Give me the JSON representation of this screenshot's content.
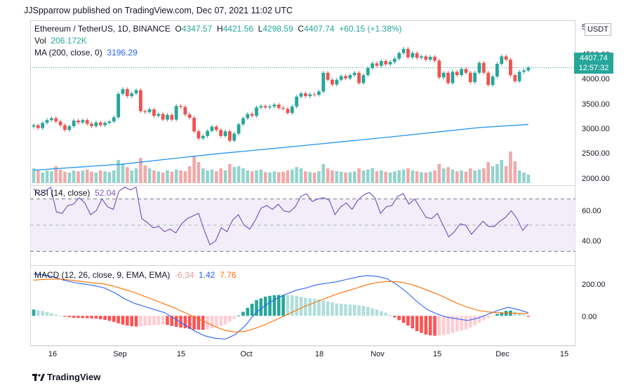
{
  "header": {
    "text": "JJSpparrow published on TradingView.com, Dec 07, 2021 11:02 UTC"
  },
  "legend": {
    "symbol": "Ethereum / TetherUS, 1D, BINANCE",
    "open_label": "O",
    "open": "4347.57",
    "high_label": "H",
    "high": "4421.56",
    "low_label": "L",
    "low": "4298.59",
    "close_label": "C",
    "close": "4407.74",
    "change": "+60.15 (+1.38%)",
    "vol_label": "Vol",
    "vol": "206.172K",
    "ma_label": "MA (200, close, 0)",
    "ma": "3196.29",
    "rsi_label": "RSI (14, close)",
    "rsi": "52.04",
    "macd_label": "MACD (12, 26, close, 9, EMA, EMA)",
    "macd_hist": "-6.34",
    "macd_line": "1.42",
    "macd_signal": "7.76"
  },
  "price_axis": {
    "currency_button": "USDT",
    "top_cut": "5",
    "ticks": [
      "4500.00",
      "4000.00",
      "3500.00",
      "3000.00",
      "2500.00",
      "2000.00"
    ],
    "last_price": "4407.74",
    "countdown": "12:57:32"
  },
  "rsi_axis": {
    "ticks": [
      "60.00",
      "40.00"
    ]
  },
  "macd_axis": {
    "ticks": [
      "200.00",
      "0.00"
    ]
  },
  "x_axis": {
    "ticks": [
      "16",
      "Sep",
      "15",
      "Oct",
      "18",
      "Nov",
      "15",
      "Dec",
      "15"
    ]
  },
  "brand": {
    "name": "TradingView"
  },
  "colors": {
    "up": "#26a69a",
    "down": "#ef5350",
    "ma": "#2196f3",
    "rsi": "#7e57c2",
    "macd": "#2962ff",
    "signal": "#ff6d00"
  },
  "chart_data": {
    "type": "candlestick",
    "title": "Ethereum / TetherUS, 1D, BINANCE",
    "price_range": [
      1900,
      5000
    ],
    "candles": [
      {
        "o": 3150,
        "c": 3180
      },
      {
        "o": 3180,
        "c": 3120
      },
      {
        "o": 3120,
        "c": 3230
      },
      {
        "o": 3230,
        "c": 3290
      },
      {
        "o": 3290,
        "c": 3330
      },
      {
        "o": 3330,
        "c": 3260
      },
      {
        "o": 3260,
        "c": 3180
      },
      {
        "o": 3180,
        "c": 3080
      },
      {
        "o": 3080,
        "c": 3160
      },
      {
        "o": 3160,
        "c": 3280
      },
      {
        "o": 3280,
        "c": 3240
      },
      {
        "o": 3240,
        "c": 3290
      },
      {
        "o": 3290,
        "c": 3210
      },
      {
        "o": 3210,
        "c": 3160
      },
      {
        "o": 3160,
        "c": 3240
      },
      {
        "o": 3240,
        "c": 3180
      },
      {
        "o": 3180,
        "c": 3230
      },
      {
        "o": 3230,
        "c": 3260
      },
      {
        "o": 3260,
        "c": 3350
      },
      {
        "o": 3350,
        "c": 3850
      },
      {
        "o": 3850,
        "c": 3950
      },
      {
        "o": 3950,
        "c": 3800
      },
      {
        "o": 3800,
        "c": 3860
      },
      {
        "o": 3860,
        "c": 3930
      },
      {
        "o": 3930,
        "c": 3480
      },
      {
        "o": 3480,
        "c": 3460
      },
      {
        "o": 3460,
        "c": 3520
      },
      {
        "o": 3520,
        "c": 3380
      },
      {
        "o": 3380,
        "c": 3420
      },
      {
        "o": 3420,
        "c": 3300
      },
      {
        "o": 3300,
        "c": 3400
      },
      {
        "o": 3400,
        "c": 3300
      },
      {
        "o": 3300,
        "c": 3590
      },
      {
        "o": 3590,
        "c": 3570
      },
      {
        "o": 3570,
        "c": 3410
      },
      {
        "o": 3410,
        "c": 3340
      },
      {
        "o": 3340,
        "c": 3050
      },
      {
        "o": 3050,
        "c": 2900
      },
      {
        "o": 2900,
        "c": 2950
      },
      {
        "o": 2950,
        "c": 3060
      },
      {
        "o": 3060,
        "c": 3150
      },
      {
        "o": 3150,
        "c": 3080
      },
      {
        "o": 3080,
        "c": 2950
      },
      {
        "o": 2950,
        "c": 3050
      },
      {
        "o": 3050,
        "c": 2850
      },
      {
        "o": 2850,
        "c": 3000
      },
      {
        "o": 3000,
        "c": 3200
      },
      {
        "o": 3200,
        "c": 3330
      },
      {
        "o": 3330,
        "c": 3420
      },
      {
        "o": 3420,
        "c": 3380
      },
      {
        "o": 3380,
        "c": 3560
      },
      {
        "o": 3560,
        "c": 3590
      },
      {
        "o": 3590,
        "c": 3560
      },
      {
        "o": 3560,
        "c": 3580
      },
      {
        "o": 3580,
        "c": 3620
      },
      {
        "o": 3620,
        "c": 3550
      },
      {
        "o": 3550,
        "c": 3530
      },
      {
        "o": 3530,
        "c": 3440
      },
      {
        "o": 3440,
        "c": 3580
      },
      {
        "o": 3580,
        "c": 3790
      },
      {
        "o": 3790,
        "c": 3860
      },
      {
        "o": 3860,
        "c": 3800
      },
      {
        "o": 3800,
        "c": 3840
      },
      {
        "o": 3840,
        "c": 3830
      },
      {
        "o": 3830,
        "c": 3900
      },
      {
        "o": 3900,
        "c": 4300
      },
      {
        "o": 4300,
        "c": 4150
      },
      {
        "o": 4150,
        "c": 4050
      },
      {
        "o": 4050,
        "c": 4150
      },
      {
        "o": 4150,
        "c": 4230
      },
      {
        "o": 4230,
        "c": 4180
      },
      {
        "o": 4180,
        "c": 4250
      },
      {
        "o": 4250,
        "c": 4300
      },
      {
        "o": 4300,
        "c": 4080
      },
      {
        "o": 4080,
        "c": 4250
      },
      {
        "o": 4250,
        "c": 4400
      },
      {
        "o": 4400,
        "c": 4500
      },
      {
        "o": 4500,
        "c": 4450
      },
      {
        "o": 4450,
        "c": 4550
      },
      {
        "o": 4550,
        "c": 4480
      },
      {
        "o": 4480,
        "c": 4530
      },
      {
        "o": 4530,
        "c": 4600
      },
      {
        "o": 4600,
        "c": 4720
      },
      {
        "o": 4720,
        "c": 4810
      },
      {
        "o": 4810,
        "c": 4630
      },
      {
        "o": 4630,
        "c": 4720
      },
      {
        "o": 4720,
        "c": 4620
      },
      {
        "o": 4620,
        "c": 4650
      },
      {
        "o": 4650,
        "c": 4580
      },
      {
        "o": 4580,
        "c": 4640
      },
      {
        "o": 4640,
        "c": 4560
      },
      {
        "o": 4560,
        "c": 4200
      },
      {
        "o": 4200,
        "c": 4300
      },
      {
        "o": 4300,
        "c": 4080
      },
      {
        "o": 4080,
        "c": 4320
      },
      {
        "o": 4320,
        "c": 4250
      },
      {
        "o": 4250,
        "c": 4380
      },
      {
        "o": 4380,
        "c": 4300
      },
      {
        "o": 4300,
        "c": 4100
      },
      {
        "o": 4100,
        "c": 4300
      },
      {
        "o": 4300,
        "c": 4510
      },
      {
        "o": 4510,
        "c": 4300
      },
      {
        "o": 4300,
        "c": 4040
      },
      {
        "o": 4040,
        "c": 4220
      },
      {
        "o": 4220,
        "c": 4490
      },
      {
        "o": 4490,
        "c": 4650
      },
      {
        "o": 4650,
        "c": 4580
      },
      {
        "o": 4580,
        "c": 4250
      },
      {
        "o": 4250,
        "c": 4120
      },
      {
        "o": 4120,
        "c": 4320
      },
      {
        "o": 4320,
        "c": 4350
      },
      {
        "o": 4350,
        "c": 4408
      }
    ],
    "volume_relative": [
      0.35,
      0.3,
      0.25,
      0.3,
      0.28,
      0.4,
      0.32,
      0.27,
      0.25,
      0.3,
      0.28,
      0.3,
      0.32,
      0.27,
      0.25,
      0.3,
      0.28,
      0.26,
      0.3,
      0.55,
      0.45,
      0.38,
      0.3,
      0.35,
      0.6,
      0.42,
      0.35,
      0.3,
      0.28,
      0.25,
      0.3,
      0.27,
      0.32,
      0.3,
      0.28,
      0.4,
      0.65,
      0.5,
      0.35,
      0.3,
      0.32,
      0.28,
      0.35,
      0.3,
      0.45,
      0.38,
      0.4,
      0.35,
      0.3,
      0.28,
      0.3,
      0.32,
      0.26,
      0.25,
      0.28,
      0.26,
      0.27,
      0.3,
      0.32,
      0.38,
      0.35,
      0.28,
      0.26,
      0.25,
      0.28,
      0.45,
      0.35,
      0.3,
      0.28,
      0.27,
      0.25,
      0.26,
      0.28,
      0.35,
      0.3,
      0.32,
      0.35,
      0.28,
      0.3,
      0.27,
      0.25,
      0.28,
      0.3,
      0.32,
      0.35,
      0.3,
      0.28,
      0.26,
      0.25,
      0.27,
      0.3,
      0.45,
      0.35,
      0.38,
      0.32,
      0.28,
      0.3,
      0.27,
      0.35,
      0.3,
      0.32,
      0.35,
      0.5,
      0.4,
      0.45,
      0.55,
      0.4,
      0.75,
      0.52,
      0.3,
      0.25,
      0.2
    ],
    "ma200": [
      {
        "i": 0,
        "v": 2220
      },
      {
        "i": 20,
        "v": 2350
      },
      {
        "i": 40,
        "v": 2560
      },
      {
        "i": 60,
        "v": 2740
      },
      {
        "i": 80,
        "v": 2930
      },
      {
        "i": 100,
        "v": 3130
      },
      {
        "i": 111,
        "v": 3196
      }
    ],
    "rsi_range": [
      20,
      80
    ],
    "rsi": [
      78,
      73,
      76,
      79,
      60,
      59,
      65,
      66,
      71,
      67,
      58,
      61,
      70,
      64,
      62,
      76,
      79,
      77,
      79,
      55,
      52,
      48,
      49,
      45,
      47,
      44,
      51,
      55,
      57,
      59,
      46,
      35,
      38,
      48,
      45,
      54,
      58,
      50,
      47,
      54,
      63,
      65,
      62,
      66,
      61,
      60,
      64,
      72,
      74,
      68,
      70,
      71,
      69,
      58,
      64,
      67,
      62,
      69,
      73,
      75,
      71,
      59,
      64,
      65,
      72,
      74,
      66,
      70,
      63,
      56,
      55,
      59,
      50,
      41,
      45,
      51,
      50,
      43,
      48,
      53,
      49,
      49,
      53,
      56,
      61,
      55,
      46,
      51
    ],
    "macd_range": [
      -180,
      300
    ],
    "macd": [
      270,
      265,
      250,
      230,
      215,
      205,
      195,
      180,
      150,
      110,
      80,
      60,
      40,
      20,
      -20,
      -60,
      -100,
      -130,
      -145,
      -150,
      -120,
      -60,
      20,
      70,
      110,
      140,
      165,
      180,
      200,
      210,
      220,
      235,
      250,
      260,
      255,
      240,
      200,
      150,
      90,
      40,
      10,
      -10,
      -20,
      -30,
      -15,
      10,
      35,
      55,
      40,
      20
    ],
    "macd_signal": [
      230,
      235,
      238,
      235,
      228,
      220,
      212,
      205,
      190,
      170,
      150,
      125,
      100,
      75,
      50,
      20,
      -10,
      -40,
      -70,
      -95,
      -105,
      -100,
      -80,
      -55,
      -25,
      5,
      35,
      65,
      90,
      115,
      140,
      160,
      180,
      200,
      215,
      222,
      220,
      210,
      190,
      165,
      140,
      110,
      80,
      55,
      35,
      25,
      20,
      18,
      16,
      14
    ],
    "macd_hist": [
      40,
      30,
      12,
      -5,
      -13,
      -15,
      -17,
      -25,
      -40,
      -60,
      -70,
      -65,
      -60,
      -55,
      -70,
      -80,
      -90,
      -90,
      -75,
      -55,
      -15,
      40,
      100,
      125,
      135,
      135,
      130,
      115,
      110,
      95,
      80,
      75,
      70,
      60,
      40,
      18,
      -20,
      -60,
      -100,
      -125,
      -130,
      -120,
      -100,
      -85,
      -50,
      -15,
      15,
      37,
      24,
      -6
    ]
  }
}
